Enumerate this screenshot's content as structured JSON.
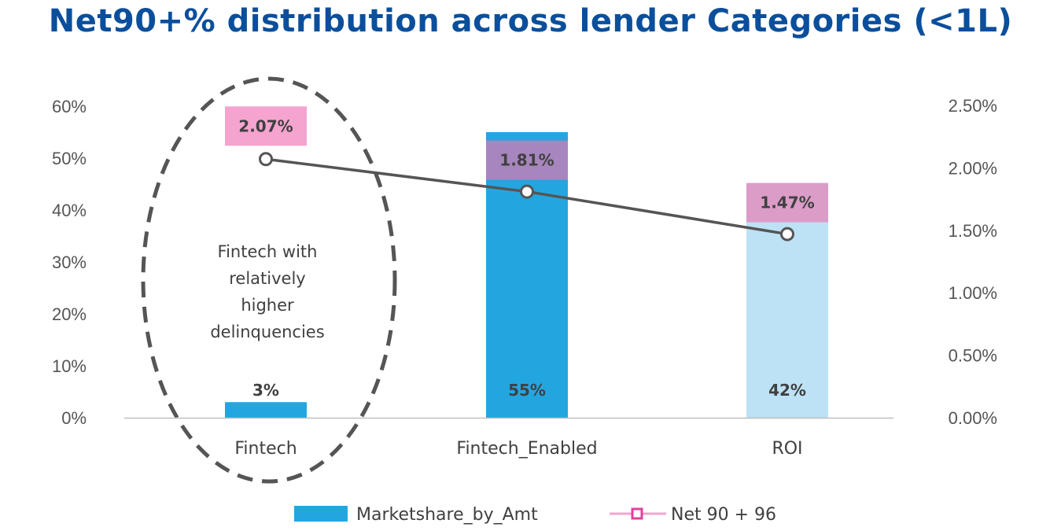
{
  "title": "Net90+% distribution across lender Categories (<1L)",
  "annotation": {
    "lines": [
      "Fintech with",
      "relatively",
      "higher",
      "delinquencies"
    ],
    "highlights_category": "Fintech"
  },
  "colors": {
    "title": "#0b4f9c",
    "bar_fintech": "#23a6e0",
    "bar_fintech_enabled": "#23a6e0",
    "bar_roi": "#bde2f6",
    "net_box_fintech": "#f4a4cf",
    "net_box_fintech_enabled": "#a785be",
    "net_box_roi": "#db9cc8",
    "line": "#555555",
    "legend_marker": "#e0419e",
    "legend_line": "#f4a4cf"
  },
  "chart_data": {
    "type": "bar",
    "categories": [
      "Fintech",
      "Fintech_Enabled",
      "ROI"
    ],
    "series": [
      {
        "name": "Marketshare_by_Amt",
        "type": "bar",
        "axis": "left",
        "values": [
          3,
          55,
          42
        ],
        "labels": [
          "3%",
          "55%",
          "42%"
        ]
      },
      {
        "name": "Net 90 + 96",
        "type": "line",
        "axis": "right",
        "values": [
          2.07,
          1.81,
          1.47
        ],
        "labels": [
          "2.07%",
          "1.81%",
          "1.47%"
        ]
      }
    ],
    "y_left": {
      "range": [
        0,
        60
      ],
      "ticks": [
        "0%",
        "10%",
        "20%",
        "30%",
        "40%",
        "50%",
        "60%"
      ]
    },
    "y_right": {
      "range": [
        0,
        2.5
      ],
      "ticks": [
        "0.00%",
        "0.50%",
        "1.00%",
        "1.50%",
        "2.00%",
        "2.50%"
      ]
    },
    "grid": false,
    "legend_position": "bottom"
  }
}
